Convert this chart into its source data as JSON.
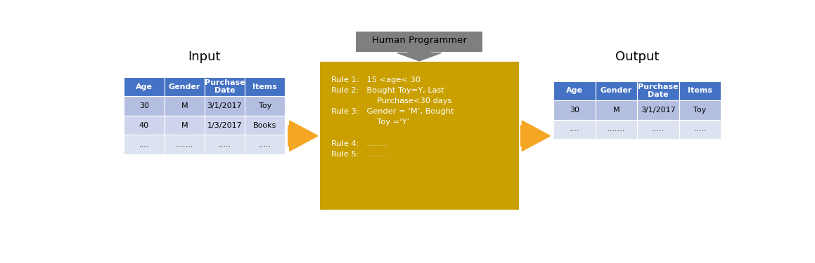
{
  "fig_width": 11.59,
  "fig_height": 3.75,
  "bg_color": "#ffffff",
  "input_label": "Input",
  "output_label": "Output",
  "programmer_label": "Human Programmer",
  "table_header_color": "#4472C4",
  "table_row1_color": "#B4BEE0",
  "table_row2_color": "#CDD4EC",
  "table_row3_color": "#DDE2F0",
  "table_header_text_color": "#ffffff",
  "table_body_text_color": "#000000",
  "table_cols": [
    "Age",
    "Gender",
    "Purchase\nDate",
    "Items"
  ],
  "input_rows": [
    [
      "30",
      "M",
      "3/1/2017",
      "Toy"
    ],
    [
      "40",
      "M",
      "1/3/2017",
      "Books"
    ],
    [
      "....",
      ".......",
      ".....",
      "....."
    ]
  ],
  "output_rows": [
    [
      "30",
      "M",
      "3/1/2017",
      "Toy"
    ],
    [
      "....",
      ".......",
      ".....",
      "....."
    ]
  ],
  "logic_box_color": "#C9A000",
  "logic_text_color": "#ffffff",
  "logic_lines": [
    "Rule 1:   15 <age< 30",
    "Rule 2:   Bought Toy=Y, Last",
    "                  Purchase<30 days",
    "Rule 3:   Gender = ‘M’, Bought",
    "                  Toy =‘Y’",
    "",
    "Rule 4:   ........",
    "Rule 5:   ........"
  ],
  "arrow_color": "#F5A623",
  "programmer_box_color": "#7F7F7F",
  "programmer_text_color": "#000000"
}
